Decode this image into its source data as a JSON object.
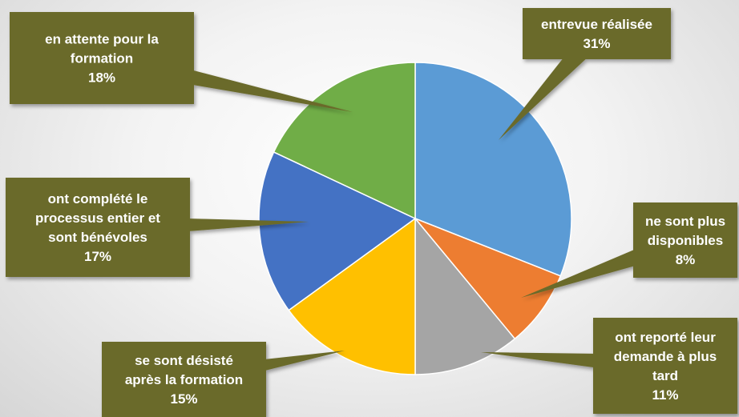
{
  "chart_data": {
    "type": "pie",
    "title": "",
    "start_angle_deg": 0,
    "direction": "clockwise",
    "slices": [
      {
        "name": "entrevue réalisée",
        "value": 31,
        "label_lines": [
          "entrevue réalisée"
        ],
        "pct_label": "31%",
        "color": "#5B9BD5"
      },
      {
        "name": "ne sont plus disponibles",
        "value": 8,
        "label_lines": [
          "ne sont plus",
          "disponibles"
        ],
        "pct_label": "8%",
        "color": "#ED7D31"
      },
      {
        "name": "ont reporté leur demande à plus tard",
        "value": 11,
        "label_lines": [
          "ont reporté leur",
          "demande à plus",
          "tard"
        ],
        "pct_label": "11%",
        "color": "#A5A5A5"
      },
      {
        "name": "se sont désisté après la formation",
        "value": 15,
        "label_lines": [
          "se sont désisté",
          "après la formation"
        ],
        "pct_label": "15%",
        "color": "#FFC000"
      },
      {
        "name": "ont complété le processus entier et sont bénévoles",
        "value": 17,
        "label_lines": [
          "ont complété le",
          "processus entier et",
          "sont bénévoles"
        ],
        "pct_label": "17%",
        "color": "#4472C4"
      },
      {
        "name": "en attente pour la formation",
        "value": 18,
        "label_lines": [
          "en attente pour la",
          "formation"
        ],
        "pct_label": "18%",
        "color": "#70AD47"
      }
    ],
    "callout_color": "#6B6A2B",
    "label_color": "#FFFFFF",
    "legend": "none"
  }
}
